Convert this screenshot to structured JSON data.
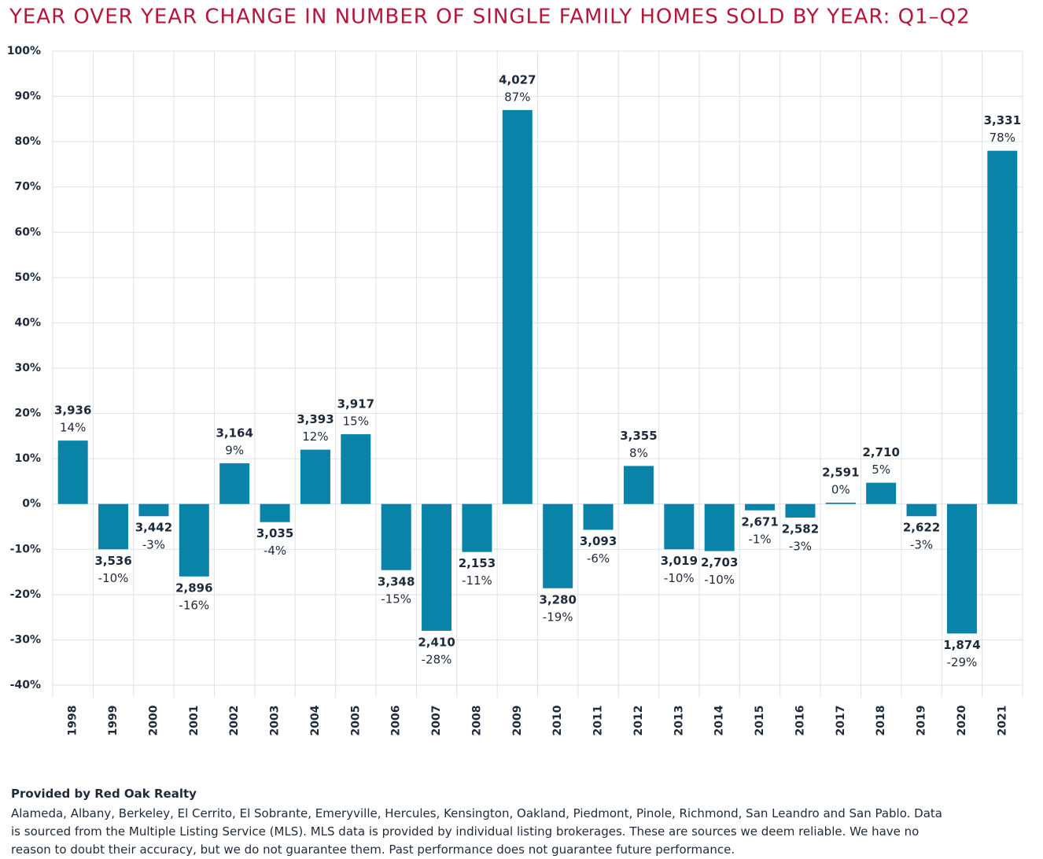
{
  "chart_data": {
    "type": "bar",
    "title": "YEAR OVER YEAR CHANGE IN NUMBER OF SINGLE FAMILY HOMES SOLD BY YEAR: Q1–Q2",
    "source": "Provided by Red Oak Realty",
    "note": "Alameda, Albany, Berkeley, El Cerrito, El Sobrante, Emeryville, Hercules, Kensington, Oakland, Piedmont, Pinole, Richmond, San Leandro and San Pablo. Data is sourced from the Multiple Listing Service (MLS). MLS data is provided by individual listing brokerages. These are sources we deem reliable. We have no reason to doubt their accuracy, but we do not guarantee them. Past performance does not guarantee future performance.",
    "categories": [
      "1998",
      "1999",
      "2000",
      "2001",
      "2002",
      "2003",
      "2004",
      "2005",
      "2006",
      "2007",
      "2008",
      "2009",
      "2010",
      "2011",
      "2012",
      "2013",
      "2014",
      "2015",
      "2016",
      "2017",
      "2018",
      "2019",
      "2020",
      "2021"
    ],
    "values": [
      14,
      -10,
      -2.7,
      -16,
      9,
      -4,
      12,
      15.4,
      -14.6,
      -28,
      -10.6,
      87,
      -18.6,
      -5.7,
      8.4,
      -10,
      -10.4,
      -1.4,
      -3,
      0.3,
      4.7,
      -2.7,
      -28.6,
      78
    ],
    "value_labels": [
      "14%",
      "-10%",
      "-3%",
      "-16%",
      "9%",
      "-4%",
      "12%",
      "15%",
      "-15%",
      "-28%",
      "-11%",
      "87%",
      "-19%",
      "-6%",
      "8%",
      "-10%",
      "-10%",
      "-1%",
      "-3%",
      "0%",
      "5%",
      "-3%",
      "-29%",
      "78%"
    ],
    "count_labels": [
      "3,936",
      "3,536",
      "3,442",
      "2,896",
      "3,164",
      "3,035",
      "3,393",
      "3,917",
      "3,348",
      "2,410",
      "2,153",
      "4,027",
      "3,280",
      "3,093",
      "3,355",
      "3,019",
      "2,703",
      "2,671",
      "2,582",
      "2,591",
      "2,710",
      "2,622",
      "1,874",
      "3,331"
    ],
    "color": "#0a83a8",
    "ylim": [
      -42,
      100
    ],
    "yticks": [
      {
        "value": -40,
        "label": "-40%"
      },
      {
        "value": -30,
        "label": "-30%"
      },
      {
        "value": -20,
        "label": "-20%"
      },
      {
        "value": -10,
        "label": "-10%"
      },
      {
        "value": 0,
        "label": "0%"
      },
      {
        "value": 10,
        "label": "10%"
      },
      {
        "value": 20,
        "label": "20%"
      },
      {
        "value": 30,
        "label": "30%"
      },
      {
        "value": 40,
        "label": "40%"
      },
      {
        "value": 50,
        "label": "50%"
      },
      {
        "value": 60,
        "label": "60%"
      },
      {
        "value": 70,
        "label": "70%"
      },
      {
        "value": 80,
        "label": "80%"
      },
      {
        "value": 90,
        "label": "90%"
      },
      {
        "value": 100,
        "label": "100%"
      }
    ],
    "grid": true
  }
}
